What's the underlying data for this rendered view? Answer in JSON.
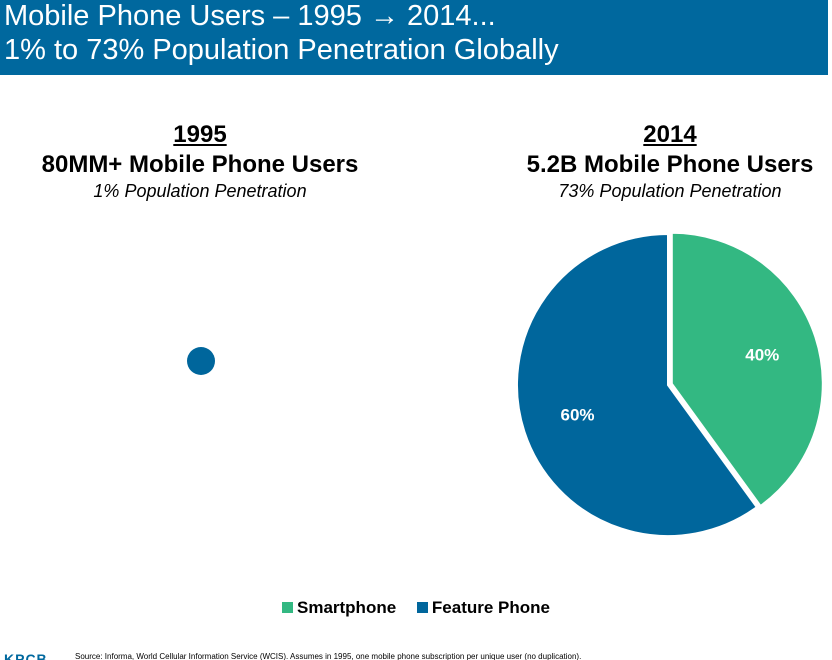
{
  "header": {
    "title_line1": "Mobile Phone Users – 1995 → 2014...",
    "title_line2": "1% to 73% Population Penetration Globally"
  },
  "left": {
    "year": "1995",
    "users": "80MM+ Mobile Phone Users",
    "penetration": "1% Population Penetration"
  },
  "right": {
    "year": "2014",
    "users": "5.2B Mobile Phone Users",
    "penetration": "73% Population Penetration"
  },
  "chart_data": {
    "type": "pie",
    "title": "2014",
    "slices": [
      {
        "name": "Smartphone",
        "value": 40,
        "label": "40%",
        "color": "#33b882"
      },
      {
        "name": "Feature Phone",
        "value": 60,
        "label": "60%",
        "color": "#00669c"
      }
    ],
    "legend_position": "bottom"
  },
  "legend": {
    "smartphone": "Smartphone",
    "feature_phone": "Feature Phone"
  },
  "footer": {
    "logo": "KPCB",
    "source": "Source: Informa, World Cellular Information Service (WCIS). Assumes in 1995, one mobile phone subscription per unique user (no duplication)."
  }
}
